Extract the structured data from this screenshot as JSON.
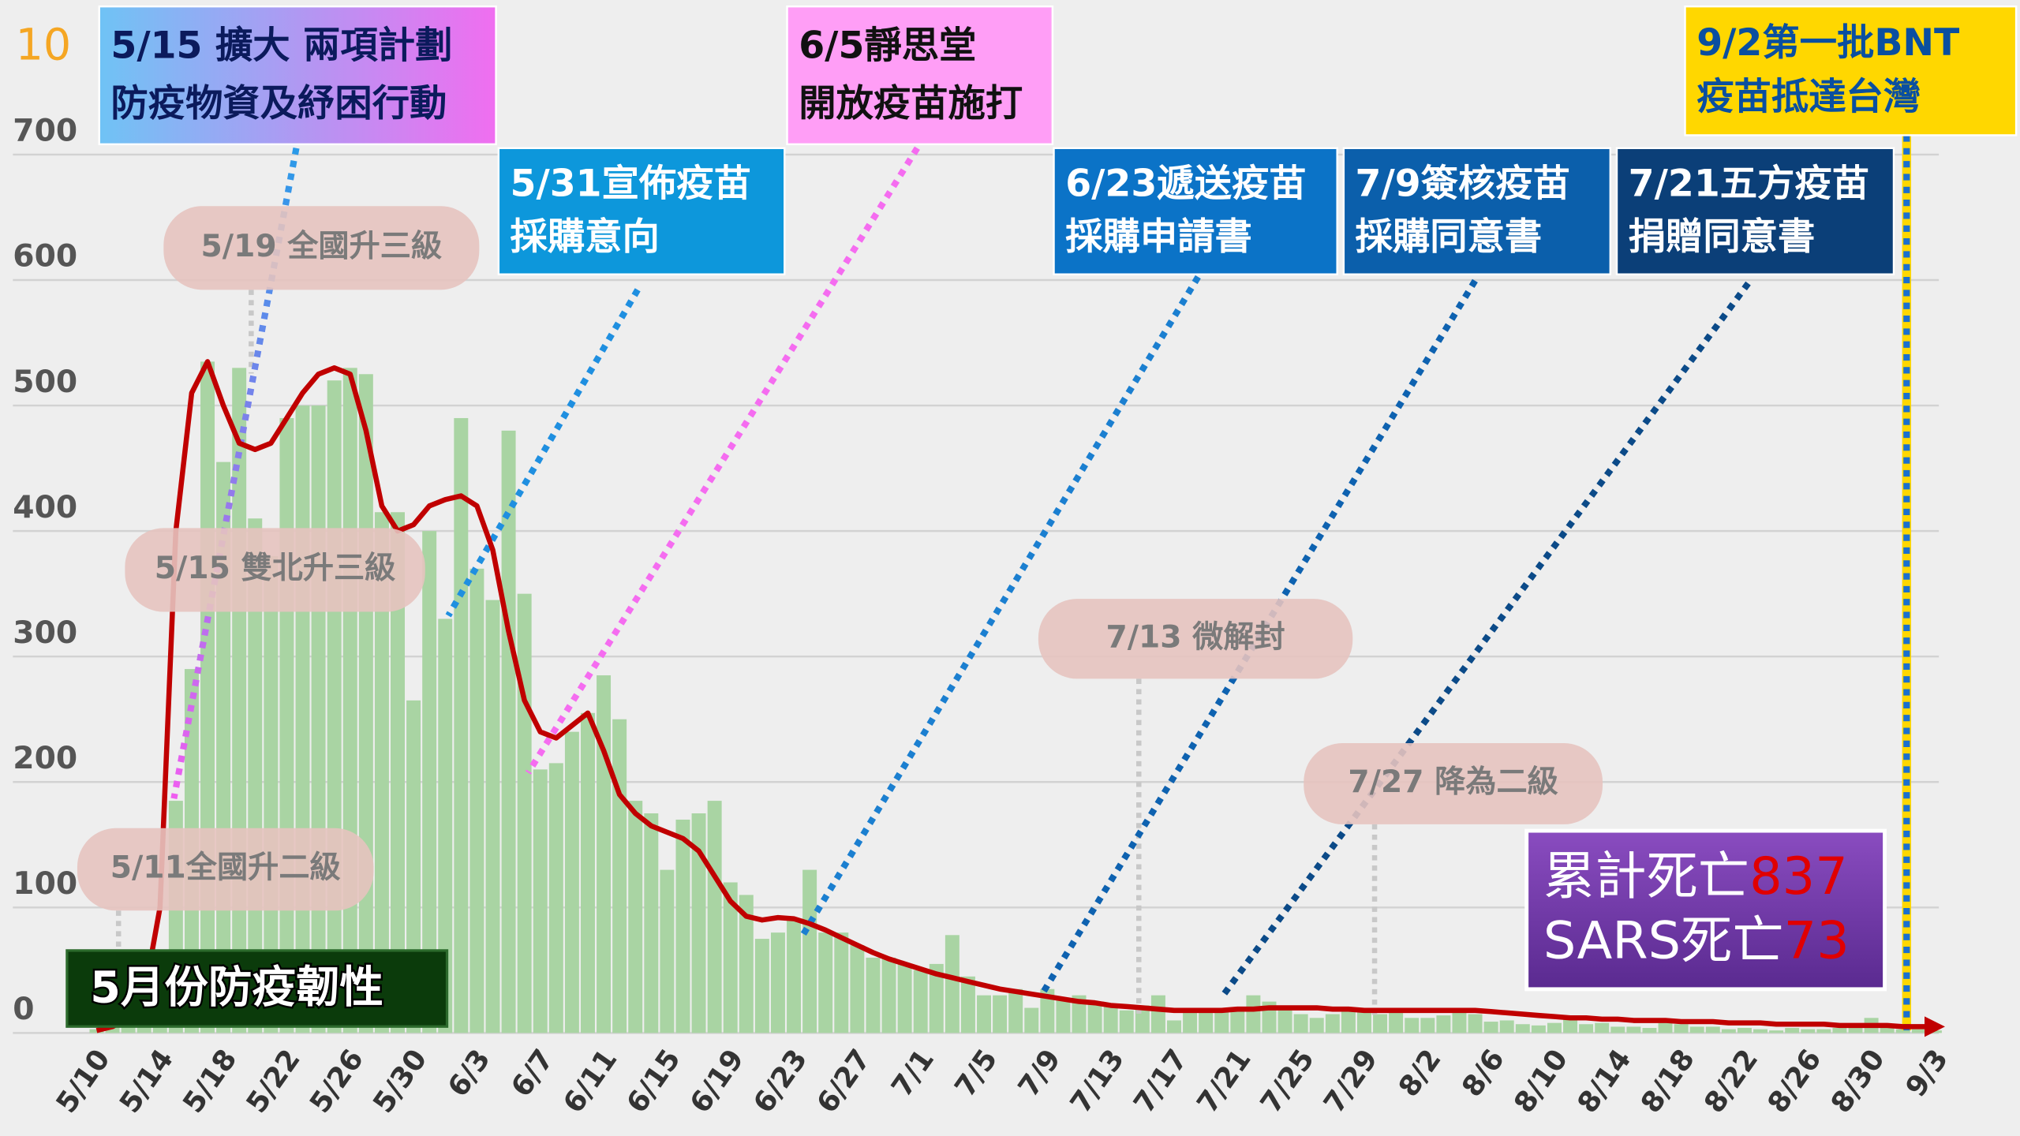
{
  "chart_data": {
    "type": "bar",
    "corner_label": "10",
    "categories": [
      "5/10",
      null,
      null,
      null,
      "5/14",
      null,
      null,
      null,
      "5/18",
      null,
      null,
      null,
      "5/22",
      null,
      null,
      null,
      "5/26",
      null,
      null,
      null,
      "5/30",
      null,
      null,
      null,
      "6/3",
      null,
      null,
      null,
      "6/7",
      null,
      null,
      null,
      "6/11",
      null,
      null,
      null,
      "6/15",
      null,
      null,
      null,
      "6/19",
      null,
      null,
      null,
      "6/23",
      null,
      null,
      null,
      "6/27",
      null,
      null,
      null,
      "7/1",
      null,
      null,
      null,
      "7/5",
      null,
      null,
      null,
      "7/9",
      null,
      null,
      null,
      "7/13",
      null,
      null,
      null,
      "7/17",
      null,
      null,
      null,
      "7/21",
      null,
      null,
      null,
      "7/25",
      null,
      null,
      null,
      "7/29",
      null,
      null,
      null,
      "8/2",
      null,
      null,
      null,
      "8/6",
      null,
      null,
      null,
      "8/10",
      null,
      null,
      null,
      "8/14",
      null,
      null,
      null,
      "8/18",
      null,
      null,
      null,
      "8/22",
      null,
      null,
      null,
      "8/26",
      null,
      null,
      null,
      "8/30",
      null,
      null,
      null,
      "9/3"
    ],
    "values": [
      3,
      7,
      16,
      13,
      29,
      185,
      290,
      535,
      455,
      530,
      410,
      380,
      490,
      500,
      500,
      520,
      530,
      525,
      415,
      415,
      265,
      400,
      330,
      490,
      370,
      345,
      480,
      350,
      210,
      215,
      240,
      255,
      285,
      250,
      185,
      175,
      130,
      170,
      175,
      185,
      120,
      110,
      75,
      80,
      90,
      130,
      80,
      80,
      70,
      60,
      60,
      55,
      50,
      55,
      78,
      45,
      30,
      30,
      35,
      20,
      35,
      28,
      30,
      25,
      23,
      18,
      22,
      30,
      10,
      17,
      18,
      20,
      18,
      30,
      25,
      20,
      15,
      12,
      15,
      20,
      18,
      15,
      18,
      12,
      12,
      14,
      18,
      15,
      9,
      10,
      7,
      6,
      8,
      12,
      7,
      8,
      5,
      5,
      4,
      8,
      7,
      5,
      5,
      3,
      4,
      3,
      2,
      4,
      3,
      3,
      4,
      5,
      12,
      5,
      3,
      3,
      2
    ],
    "color": "#a9d4a3",
    "trend": {
      "color": "#c00000",
      "values": [
        2,
        5,
        12,
        30,
        100,
        400,
        510,
        535,
        500,
        470,
        465,
        470,
        490,
        510,
        525,
        530,
        525,
        480,
        420,
        400,
        405,
        420,
        425,
        428,
        420,
        385,
        320,
        265,
        240,
        235,
        245,
        255,
        225,
        190,
        175,
        165,
        160,
        155,
        145,
        125,
        105,
        93,
        90,
        92,
        91,
        87,
        82,
        76,
        70,
        64,
        59,
        55,
        51,
        47,
        44,
        41,
        38,
        35,
        33,
        31,
        29,
        27,
        25,
        24,
        22,
        21,
        20,
        19,
        18,
        18,
        18,
        18,
        19,
        19,
        20,
        20,
        20,
        20,
        19,
        19,
        18,
        18,
        18,
        18,
        18,
        18,
        18,
        18,
        17,
        16,
        15,
        14,
        13,
        12,
        12,
        11,
        11,
        10,
        10,
        10,
        9,
        9,
        9,
        8,
        8,
        8,
        7,
        7,
        7,
        7,
        6,
        6,
        6,
        6,
        5,
        5,
        5
      ]
    },
    "ylim": [
      0,
      700
    ],
    "yticks": [
      0,
      100,
      200,
      300,
      400,
      500,
      600,
      700
    ],
    "grid": true,
    "events": [
      {
        "lines": [
          "5/15 擴大 兩項計劃",
          "防疫物資及紓困行動"
        ]
      },
      {
        "lines": [
          "6/5靜思堂",
          "開放疫苗施打"
        ]
      },
      {
        "lines": [
          "9/2第一批BNT",
          "疫苗抵達台灣"
        ]
      },
      {
        "lines": [
          "5/31宣佈疫苗",
          "採購意向"
        ]
      },
      {
        "lines": [
          "6/23遞送疫苗",
          "採購申請書"
        ]
      },
      {
        "lines": [
          "7/9簽核疫苗",
          "採購同意書"
        ]
      },
      {
        "lines": [
          "7/21五方疫苗",
          "捐贈同意書"
        ]
      }
    ],
    "milestones": [
      "5/19 全國升三級",
      "5/15 雙北升三級",
      "5/11全國升二級",
      "7/13 微解封",
      "7/27 降為二級"
    ],
    "banner": "5月份防疫韌性",
    "deaths": [
      {
        "label": "累計死亡",
        "value": 837
      },
      {
        "label": "SARS死亡",
        "value": 73
      }
    ]
  }
}
